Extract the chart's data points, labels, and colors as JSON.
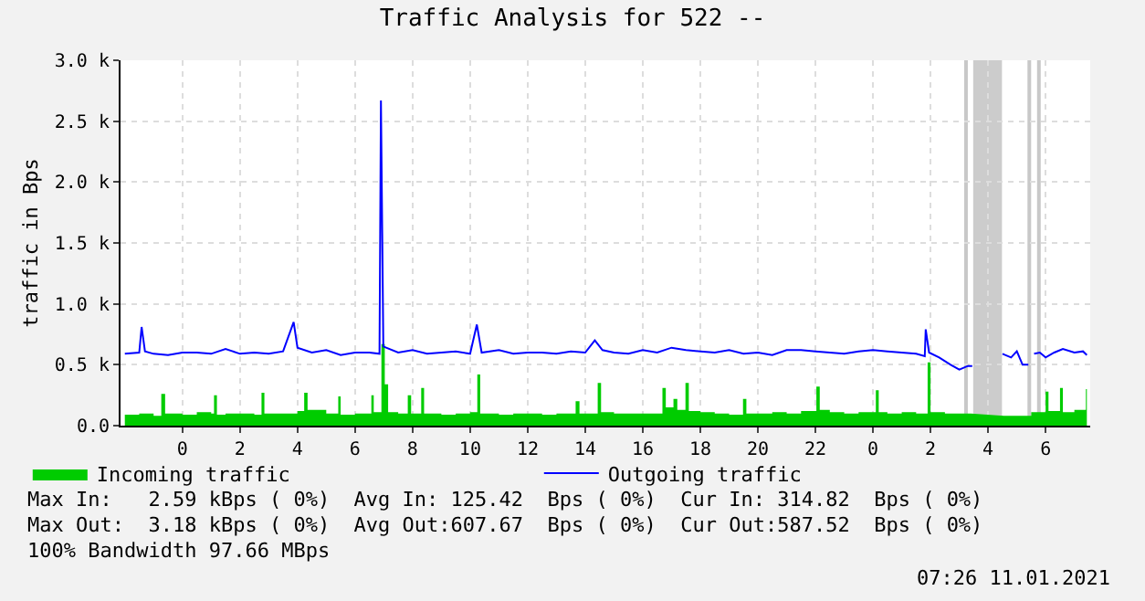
{
  "chart_data": {
    "type": "line",
    "title": "Traffic Analysis for 522 --",
    "ylabel": "traffic in Bps",
    "xlim": [
      "2021-01-09T21:51",
      "2021-01-11T07:33"
    ],
    "xticks": [
      {
        "value": "2021-01-10T00:00",
        "label": "0"
      },
      {
        "value": "2021-01-10T02:00",
        "label": "2"
      },
      {
        "value": "2021-01-10T04:00",
        "label": "4"
      },
      {
        "value": "2021-01-10T06:00",
        "label": "6"
      },
      {
        "value": "2021-01-10T08:00",
        "label": "8"
      },
      {
        "value": "2021-01-10T10:00",
        "label": "10"
      },
      {
        "value": "2021-01-10T12:00",
        "label": "12"
      },
      {
        "value": "2021-01-10T14:00",
        "label": "14"
      },
      {
        "value": "2021-01-10T16:00",
        "label": "16"
      },
      {
        "value": "2021-01-10T18:00",
        "label": "18"
      },
      {
        "value": "2021-01-10T20:00",
        "label": "20"
      },
      {
        "value": "2021-01-10T22:00",
        "label": "22"
      },
      {
        "value": "2021-01-11T00:00",
        "label": "0"
      },
      {
        "value": "2021-01-11T02:00",
        "label": "2"
      },
      {
        "value": "2021-01-11T04:00",
        "label": "4"
      },
      {
        "value": "2021-01-11T06:00",
        "label": "6"
      }
    ],
    "ylim": [
      0,
      3000
    ],
    "yticks": [
      {
        "value": 0,
        "label": "0.0"
      },
      {
        "value": 500,
        "label": "0.5 k"
      },
      {
        "value": 1000,
        "label": "1.0 k"
      },
      {
        "value": 1500,
        "label": "1.5 k"
      },
      {
        "value": 2000,
        "label": "2.0 k"
      },
      {
        "value": 2500,
        "label": "2.5 k"
      },
      {
        "value": 3000,
        "label": "3.0 k"
      }
    ],
    "grid": true,
    "legend": "bottom left",
    "series": [
      {
        "name": "Incoming traffic",
        "type": "area",
        "color": "#00cc00",
        "x": [
          "2021-01-09T22:00",
          "2021-01-09T22:30",
          "2021-01-09T23:00",
          "2021-01-09T23:16",
          "2021-01-09T23:24",
          "2021-01-10T00:00",
          "2021-01-10T00:30",
          "2021-01-10T01:00",
          "2021-01-10T01:06",
          "2021-01-10T01:12",
          "2021-01-10T01:30",
          "2021-01-10T02:00",
          "2021-01-10T02:30",
          "2021-01-10T02:45",
          "2021-01-10T02:51",
          "2021-01-10T03:30",
          "2021-01-10T04:00",
          "2021-01-10T04:14",
          "2021-01-10T04:21",
          "2021-01-10T05:00",
          "2021-01-10T05:25",
          "2021-01-10T05:30",
          "2021-01-10T06:00",
          "2021-01-10T06:34",
          "2021-01-10T06:39",
          "2021-01-10T06:55",
          "2021-01-10T07:02",
          "2021-01-10T07:09",
          "2021-01-10T07:30",
          "2021-01-10T07:50",
          "2021-01-10T07:57",
          "2021-01-10T08:18",
          "2021-01-10T08:24",
          "2021-01-10T09:00",
          "2021-01-10T09:30",
          "2021-01-10T10:00",
          "2021-01-10T10:15",
          "2021-01-10T10:21",
          "2021-01-10T11:00",
          "2021-01-10T11:30",
          "2021-01-10T12:00",
          "2021-01-10T12:30",
          "2021-01-10T13:00",
          "2021-01-10T13:40",
          "2021-01-10T13:48",
          "2021-01-10T14:26",
          "2021-01-10T14:33",
          "2021-01-10T15:00",
          "2021-01-10T15:30",
          "2021-01-10T16:00",
          "2021-01-10T16:41",
          "2021-01-10T16:48",
          "2021-01-10T17:04",
          "2021-01-10T17:12",
          "2021-01-10T17:29",
          "2021-01-10T17:36",
          "2021-01-10T18:00",
          "2021-01-10T18:30",
          "2021-01-10T19:00",
          "2021-01-10T19:29",
          "2021-01-10T19:36",
          "2021-01-10T20:00",
          "2021-01-10T20:30",
          "2021-01-10T21:00",
          "2021-01-10T21:30",
          "2021-01-10T22:02",
          "2021-01-10T22:09",
          "2021-01-10T22:30",
          "2021-01-10T23:00",
          "2021-01-10T23:30",
          "2021-01-11T00:06",
          "2021-01-11T00:12",
          "2021-01-11T00:30",
          "2021-01-11T01:00",
          "2021-01-11T01:30",
          "2021-01-11T01:54",
          "2021-01-11T02:00",
          "2021-01-11T02:30",
          "2021-01-11T03:00",
          "2021-01-11T03:24",
          "2021-01-11T03:27",
          "2021-01-11T04:30",
          "2021-01-11T04:33",
          "2021-01-11T05:00",
          "2021-01-11T05:30",
          "2021-01-11T06:00",
          "2021-01-11T06:06",
          "2021-01-11T06:30",
          "2021-01-11T06:36",
          "2021-01-11T07:00",
          "2021-01-11T07:24",
          "2021-01-11T07:26"
        ],
        "values": [
          90,
          100,
          80,
          260,
          100,
          90,
          110,
          100,
          250,
          90,
          100,
          100,
          90,
          270,
          100,
          100,
          120,
          270,
          130,
          100,
          240,
          90,
          100,
          250,
          110,
          670,
          340,
          110,
          100,
          250,
          100,
          310,
          100,
          90,
          100,
          110,
          420,
          100,
          90,
          100,
          100,
          90,
          100,
          200,
          100,
          350,
          110,
          100,
          100,
          100,
          310,
          150,
          220,
          130,
          350,
          120,
          110,
          100,
          90,
          220,
          100,
          100,
          110,
          100,
          120,
          320,
          130,
          110,
          100,
          110,
          290,
          110,
          100,
          110,
          100,
          520,
          110,
          100,
          100,
          100,
          null,
          null,
          80,
          80,
          110,
          280,
          120,
          310,
          110,
          130,
          300,
          150
        ]
      },
      {
        "name": "Outgoing traffic",
        "color": "#0000ff",
        "x": [
          "2021-01-09T22:00",
          "2021-01-09T22:30",
          "2021-01-09T22:35",
          "2021-01-09T22:42",
          "2021-01-09T23:00",
          "2021-01-09T23:30",
          "2021-01-10T00:00",
          "2021-01-10T00:30",
          "2021-01-10T01:00",
          "2021-01-10T01:30",
          "2021-01-10T02:00",
          "2021-01-10T02:30",
          "2021-01-10T03:00",
          "2021-01-10T03:30",
          "2021-01-10T03:52",
          "2021-01-10T04:00",
          "2021-01-10T04:30",
          "2021-01-10T05:00",
          "2021-01-10T05:30",
          "2021-01-10T06:00",
          "2021-01-10T06:30",
          "2021-01-10T06:51",
          "2021-01-10T06:54",
          "2021-01-10T06:59",
          "2021-01-10T07:30",
          "2021-01-10T08:00",
          "2021-01-10T08:30",
          "2021-01-10T09:00",
          "2021-01-10T09:30",
          "2021-01-10T10:00",
          "2021-01-10T10:14",
          "2021-01-10T10:24",
          "2021-01-10T11:00",
          "2021-01-10T11:30",
          "2021-01-10T12:00",
          "2021-01-10T12:30",
          "2021-01-10T13:00",
          "2021-01-10T13:30",
          "2021-01-10T14:00",
          "2021-01-10T14:20",
          "2021-01-10T14:36",
          "2021-01-10T15:00",
          "2021-01-10T15:30",
          "2021-01-10T16:00",
          "2021-01-10T16:30",
          "2021-01-10T17:00",
          "2021-01-10T17:30",
          "2021-01-10T18:00",
          "2021-01-10T18:30",
          "2021-01-10T19:00",
          "2021-01-10T19:30",
          "2021-01-10T20:00",
          "2021-01-10T20:30",
          "2021-01-10T21:00",
          "2021-01-10T21:30",
          "2021-01-10T22:00",
          "2021-01-10T22:30",
          "2021-01-10T23:00",
          "2021-01-10T23:30",
          "2021-01-11T00:00",
          "2021-01-11T00:30",
          "2021-01-11T01:00",
          "2021-01-11T01:30",
          "2021-01-11T01:48",
          "2021-01-11T01:50",
          "2021-01-11T01:57",
          "2021-01-11T02:18",
          "2021-01-11T02:42",
          "2021-01-11T03:00",
          "2021-01-11T03:18",
          "2021-01-11T03:27",
          "2021-01-11T03:30",
          "2021-01-11T04:30",
          "2021-01-11T04:48",
          "2021-01-11T05:00",
          "2021-01-11T05:12",
          "2021-01-11T05:24",
          "2021-01-11T05:30",
          "2021-01-11T05:36",
          "2021-01-11T05:48",
          "2021-01-11T06:00",
          "2021-01-11T06:18",
          "2021-01-11T06:36",
          "2021-01-11T07:00",
          "2021-01-11T07:18",
          "2021-01-11T07:26"
        ],
        "values": [
          590,
          600,
          810,
          610,
          590,
          580,
          600,
          600,
          590,
          630,
          590,
          600,
          590,
          610,
          850,
          640,
          600,
          620,
          580,
          600,
          600,
          590,
          2670,
          650,
          600,
          620,
          590,
          600,
          610,
          590,
          830,
          600,
          620,
          590,
          600,
          600,
          590,
          610,
          600,
          700,
          620,
          600,
          590,
          620,
          600,
          640,
          620,
          610,
          600,
          620,
          590,
          600,
          580,
          620,
          620,
          610,
          600,
          590,
          610,
          620,
          610,
          600,
          590,
          570,
          790,
          600,
          560,
          500,
          460,
          490,
          490,
          null,
          590,
          560,
          610,
          500,
          500,
          null,
          590,
          600,
          560,
          600,
          630,
          600,
          610,
          580
        ]
      }
    ],
    "bands": [
      {
        "axis": "x",
        "from": "2021-01-11T03:29",
        "to": "2021-01-11T04:29",
        "color": "#cccccc"
      }
    ],
    "ref_lines": [
      {
        "axis": "x",
        "value": "2021-01-11T03:14",
        "color": "#c8c8c8"
      },
      {
        "axis": "x",
        "value": "2021-01-11T05:26",
        "color": "#c8c8c8"
      },
      {
        "axis": "x",
        "value": "2021-01-11T05:46",
        "color": "#c8c8c8"
      }
    ],
    "annotations": [
      "Max In:   2.59 kBps ( 0%)  Avg In: 125.42  Bps ( 0%)  Cur In: 314.82  Bps ( 0%)",
      "Max Out:  3.18 kBps ( 0%)  Avg Out:607.67  Bps ( 0%)  Cur Out:587.52  Bps ( 0%)",
      "100% Bandwidth 97.66 MBps",
      "07:26 11.01.2021"
    ]
  }
}
